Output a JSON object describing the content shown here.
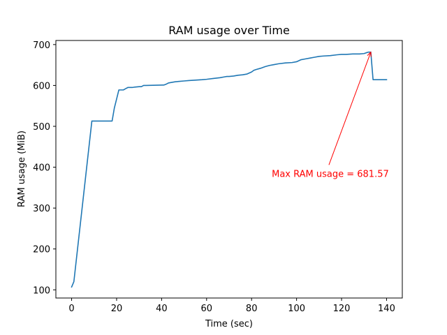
{
  "chart_data": {
    "type": "line",
    "title": "RAM usage over Time",
    "xlabel": "Time (sec)",
    "ylabel": "RAM usage (MiB)",
    "xlim": [
      -7,
      147
    ],
    "ylim": [
      80,
      710
    ],
    "xticks": [
      0,
      20,
      40,
      60,
      80,
      100,
      120,
      140
    ],
    "yticks": [
      100,
      200,
      300,
      400,
      500,
      600,
      700
    ],
    "grid": false,
    "series": [
      {
        "color": "#1f77b4",
        "x": [
          0,
          1,
          9,
          10,
          18,
          19,
          20,
          21,
          22,
          23,
          24,
          25,
          27,
          28,
          30,
          31,
          32,
          33,
          41,
          42,
          43,
          44,
          46,
          48,
          50,
          52,
          55,
          58,
          60,
          63,
          66,
          68,
          69,
          70,
          72,
          74,
          76,
          78,
          80,
          81,
          82,
          84,
          86,
          88,
          90,
          92,
          95,
          98,
          100,
          102,
          104,
          106,
          108,
          110,
          112,
          115,
          118,
          120,
          122,
          125,
          128,
          130,
          131,
          132,
          133,
          134,
          140
        ],
        "y": [
          107,
          120,
          513,
          513,
          513,
          545,
          567,
          589,
          589,
          589,
          592,
          595,
          595,
          596,
          597,
          597,
          600,
          600,
          601,
          603,
          606,
          607,
          609,
          610,
          611,
          612,
          613,
          614,
          615,
          617,
          619,
          621,
          622,
          622,
          623,
          625,
          626,
          628,
          633,
          637,
          639,
          642,
          646,
          649,
          651,
          653,
          655,
          656,
          658,
          663,
          665,
          667,
          669,
          671,
          672,
          673,
          675,
          676,
          676,
          677,
          677,
          678,
          680,
          681.57,
          681.57,
          614,
          614
        ]
      }
    ],
    "annotation": {
      "text": "Max RAM usage = 681.57",
      "color": "#ff0000",
      "xy": [
        133,
        681.57
      ],
      "xytext": [
        115,
        385
      ]
    }
  }
}
